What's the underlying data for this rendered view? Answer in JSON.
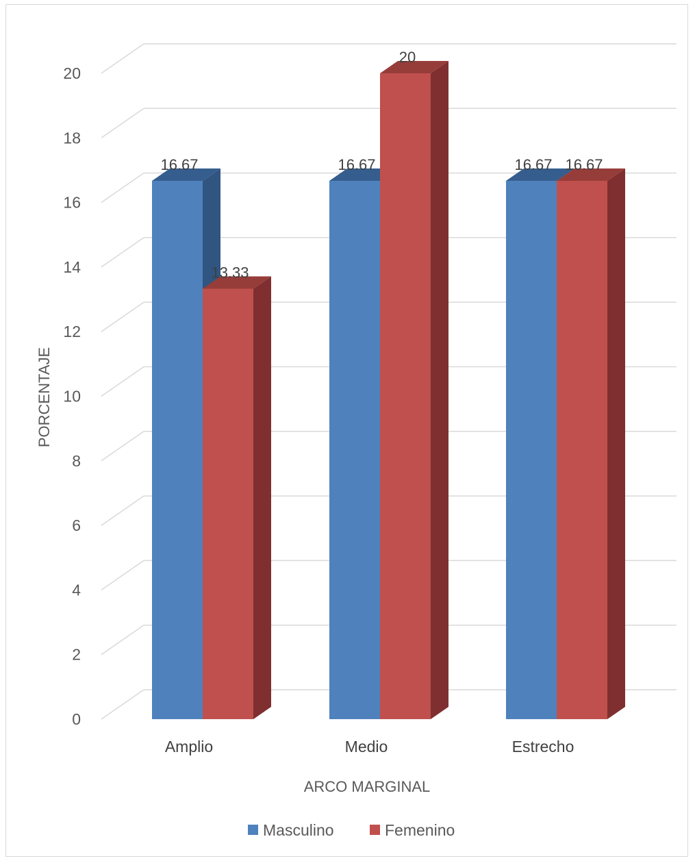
{
  "chart_data": {
    "type": "bar",
    "style": "3d-clustered-column",
    "categories": [
      "Amplio",
      "Medio",
      "Estrecho"
    ],
    "series": [
      {
        "name": "Masculino",
        "values": [
          16.67,
          16.67,
          16.67
        ],
        "color": "#4f81bd",
        "top_color": "#355e8e",
        "side_color": "#2f5580"
      },
      {
        "name": "Femenino",
        "values": [
          13.33,
          20,
          16.67
        ],
        "color": "#c0504d",
        "top_color": "#963d3a",
        "side_color": "#7f2f2f"
      }
    ],
    "data_labels": [
      [
        "16.67",
        "16.67",
        "16.67"
      ],
      [
        "13.33",
        "20",
        "16.67"
      ]
    ],
    "xlabel": "ARCO MARGINAL",
    "ylabel": "PORCENTAJE",
    "ylim": [
      0,
      20
    ],
    "yticks": [
      "0",
      "2",
      "4",
      "6",
      "8",
      "10",
      "12",
      "14",
      "16",
      "18",
      "20"
    ],
    "grid": true,
    "grid_color": "#d9d9d9",
    "legend_position": "bottom"
  }
}
